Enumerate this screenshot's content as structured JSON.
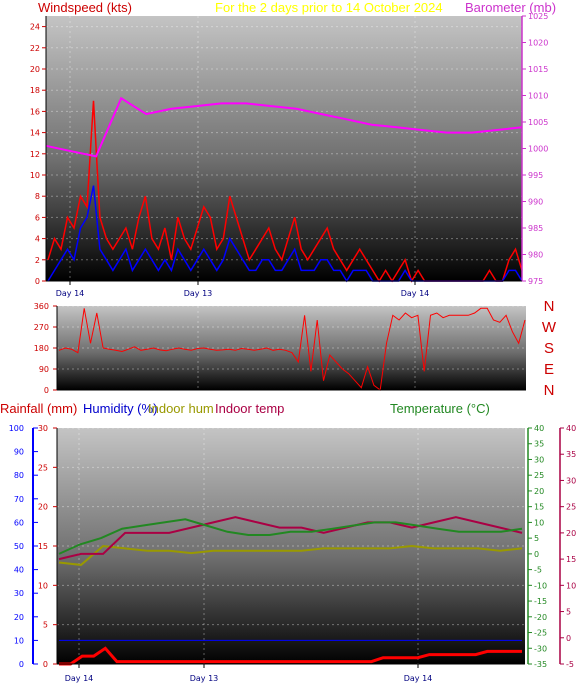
{
  "chart_data": [
    {
      "type": "line",
      "title": "For the 2 days prior to   14 October 2024",
      "ylabel_left": "Windspeed (kts)",
      "ylabel_right": "Barometer (mb)",
      "x_ticks": [
        "Day 14",
        "Day 13",
        "Day 14"
      ],
      "ylim_left": [
        0,
        25
      ],
      "yticks_left": [
        0,
        2,
        4,
        6,
        8,
        10,
        12,
        14,
        16,
        18,
        20,
        22,
        24
      ],
      "ylim_right": [
        975,
        1025
      ],
      "yticks_right": [
        975,
        980,
        985,
        990,
        995,
        1000,
        1005,
        1010,
        1015,
        1020,
        1025
      ],
      "grid": true,
      "series": [
        {
          "name": "Windspeed (kts)",
          "color": "#ff0000",
          "y": [
            2,
            4,
            3,
            6,
            5,
            8,
            7,
            17,
            6,
            4,
            3,
            4,
            5,
            3,
            6,
            8,
            4,
            3,
            5,
            2,
            6,
            4,
            3,
            5,
            7,
            6,
            3,
            4,
            8,
            6,
            4,
            2,
            3,
            4,
            5,
            3,
            2,
            4,
            6,
            3,
            2,
            3,
            4,
            5,
            3,
            2,
            1,
            2,
            3,
            2,
            1,
            0,
            1,
            0,
            1,
            2,
            0,
            1,
            0,
            0,
            0,
            0,
            0,
            0,
            0,
            0,
            0,
            0,
            1,
            0,
            0,
            2,
            3,
            1
          ]
        },
        {
          "name": "Wind gust",
          "color": "#0000ff",
          "y": [
            0,
            1,
            2,
            3,
            2,
            5,
            6,
            9,
            3,
            2,
            1,
            2,
            3,
            1,
            2,
            3,
            2,
            1,
            2,
            1,
            3,
            2,
            1,
            2,
            3,
            2,
            1,
            2,
            4,
            3,
            2,
            1,
            1,
            2,
            2,
            1,
            1,
            2,
            3,
            1,
            1,
            1,
            2,
            2,
            1,
            1,
            0,
            1,
            1,
            1,
            0,
            0,
            0,
            0,
            0,
            1,
            0,
            0,
            0,
            0,
            0,
            0,
            0,
            0,
            0,
            0,
            0,
            0,
            0,
            0,
            0,
            1,
            1,
            0
          ]
        },
        {
          "name": "Barometer (mb)",
          "color": "#ff00ff",
          "y": [
            1000.5,
            999.5,
            998.5,
            1009.5,
            1006.5,
            1007.5,
            1008,
            1008.5,
            1008.5,
            1008,
            1007.5,
            1006.5,
            1005.5,
            1004.5,
            1004,
            1003.5,
            1003,
            1003,
            1003.5,
            1004
          ]
        }
      ]
    },
    {
      "type": "scatter",
      "title": "",
      "ylabel_left": "",
      "right_labels": [
        "N",
        "W",
        "S",
        "E",
        "N"
      ],
      "ylim": [
        0,
        360
      ],
      "yticks": [
        0,
        90,
        180,
        270,
        360
      ],
      "grid": true,
      "series": [
        {
          "name": "Wind direction",
          "color": "#ff0000",
          "y": [
            170,
            180,
            175,
            160,
            350,
            200,
            330,
            180,
            175,
            170,
            165,
            175,
            185,
            170,
            175,
            180,
            172,
            168,
            175,
            180,
            175,
            170,
            178,
            180,
            175,
            170,
            172,
            175,
            170,
            178,
            175,
            170,
            175,
            180,
            170,
            175,
            170,
            160,
            120,
            320,
            80,
            300,
            40,
            150,
            120,
            90,
            70,
            40,
            10,
            100,
            20,
            0,
            200,
            320,
            300,
            330,
            310,
            320,
            80,
            320,
            330,
            310,
            320,
            320,
            320,
            320,
            330,
            350,
            350,
            300,
            290,
            320,
            250,
            200,
            300
          ]
        }
      ]
    },
    {
      "type": "line",
      "title": "",
      "ylabel_left": "Rainfall (mm)",
      "ylabel_left2": "Humidity (%)",
      "ylabel_mid": "Indoor hum",
      "ylabel_mid2": "Indoor temp",
      "ylabel_right": "Temperature (°C)",
      "x_ticks": [
        "Day 14",
        "Day 13",
        "Day 14"
      ],
      "ylim_humidity": [
        0,
        100
      ],
      "yticks_humidity": [
        0,
        10,
        20,
        30,
        40,
        50,
        60,
        70,
        80,
        90,
        100
      ],
      "ylim_rain": [
        0,
        30
      ],
      "yticks_rain": [
        0,
        5,
        10,
        15,
        20,
        25,
        30
      ],
      "ylim_temp": [
        -35,
        40
      ],
      "yticks_temp": [
        -35,
        -30,
        -25,
        -20,
        -15,
        -10,
        -5,
        0,
        5,
        10,
        15,
        20,
        25,
        30,
        35,
        40
      ],
      "ylim_indoor": [
        -5,
        40
      ],
      "yticks_indoor": [
        -5,
        0,
        5,
        10,
        15,
        20,
        25,
        30,
        35,
        40
      ],
      "grid": true,
      "series": [
        {
          "name": "Rainfall (mm)",
          "color": "#ff0000",
          "y": [
            0,
            0,
            1,
            1,
            2,
            0.3,
            0.3,
            0.3,
            0.3,
            0.3,
            0.3,
            0.3,
            0.3,
            0.3,
            0.3,
            0.3,
            0.3,
            0.3,
            0.3,
            0.3,
            0.3,
            0.3,
            0.3,
            0.3,
            0.3,
            0.3,
            0.3,
            0.3,
            0.8,
            0.8,
            0.8,
            0.8,
            1.2,
            1.2,
            1.2,
            1.2,
            1.2,
            1.6,
            1.6,
            1.6,
            1.6
          ]
        },
        {
          "name": "Humidity (%)",
          "color": "#0000ff",
          "y": [
            10,
            10,
            10,
            10,
            10,
            10,
            10,
            10,
            10,
            10
          ]
        },
        {
          "name": "Indoor hum",
          "color": "#999900",
          "y": [
            43,
            42,
            50,
            49,
            48,
            48,
            47,
            48,
            48,
            48,
            48,
            48,
            49,
            49,
            49,
            49,
            50,
            49,
            49,
            49,
            48,
            49
          ]
        },
        {
          "name": "Indoor temp",
          "color": "#aa0044",
          "y": [
            15,
            16,
            16,
            20,
            20,
            20,
            21,
            22,
            23,
            22,
            21,
            21,
            20,
            21,
            22,
            22,
            21,
            22,
            23,
            22,
            21,
            20
          ]
        },
        {
          "name": "Temperature (°C)",
          "color": "#228822",
          "y": [
            0,
            3,
            5,
            8,
            9,
            10,
            11,
            9,
            7,
            6,
            6,
            7,
            7,
            8,
            9,
            10,
            10,
            9,
            8,
            7,
            7,
            7,
            8
          ]
        }
      ]
    }
  ]
}
